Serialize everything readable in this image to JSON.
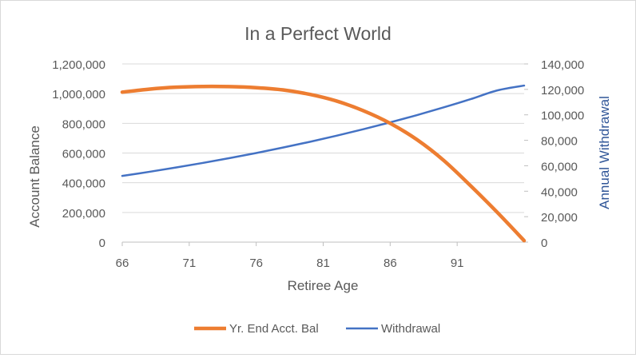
{
  "chart_data": {
    "type": "line",
    "title": "In a Perfect World",
    "xlabel": "Retiree Age",
    "ylabel_left": "Account Balance",
    "ylabel_right": "Annual Withdrawal",
    "x_ticks": [
      "66",
      "71",
      "76",
      "81",
      "86",
      "91"
    ],
    "xlim": [
      66,
      96
    ],
    "ylim_left": [
      0,
      1200000
    ],
    "ylim_right": [
      0,
      140000
    ],
    "y_ticks_left": [
      "0",
      "200,000",
      "400,000",
      "600,000",
      "800,000",
      "1,000,000",
      "1,200,000"
    ],
    "y_ticks_right": [
      "0",
      "20,000",
      "40,000",
      "60,000",
      "80,000",
      "100,000",
      "120,000",
      "140,000"
    ],
    "grid": true,
    "legend_position": "bottom",
    "series": [
      {
        "name": "Yr. End Acct. Bal",
        "axis": "left",
        "color": "#ED7D31",
        "x": [
          66,
          68,
          70,
          72,
          74,
          76,
          78,
          80,
          82,
          84,
          86,
          88,
          90,
          92,
          94,
          96
        ],
        "y": [
          1010000,
          1030000,
          1043000,
          1048000,
          1047000,
          1040000,
          1025000,
          995000,
          950000,
          885000,
          800000,
          690000,
          550000,
          380000,
          200000,
          10000
        ]
      },
      {
        "name": "Withdrawal",
        "axis": "right",
        "color": "#4472C4",
        "x": [
          66,
          68,
          70,
          72,
          74,
          76,
          78,
          80,
          82,
          84,
          86,
          88,
          90,
          92,
          94,
          96
        ],
        "y": [
          52000,
          55200,
          58600,
          62200,
          66000,
          70000,
          74300,
          78800,
          83600,
          88700,
          94100,
          99800,
          105900,
          112300,
          119200,
          123000
        ]
      }
    ]
  }
}
